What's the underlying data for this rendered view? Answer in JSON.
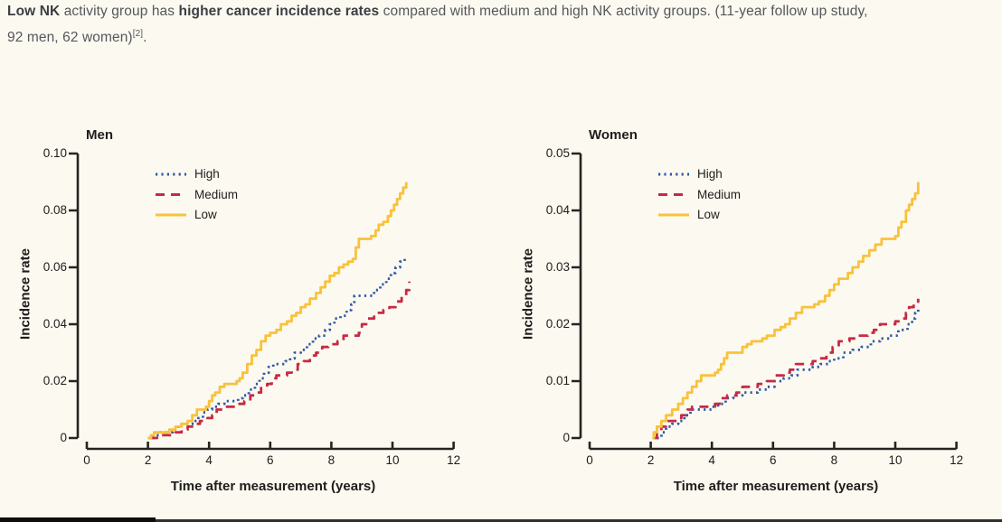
{
  "header": {
    "bold1": "Low NK",
    "text1": " activity group has ",
    "bold2": "higher cancer incidence rates",
    "text2": " compared with medium and high NK activity groups. (11-year follow up study,",
    "line2": "92 men, 62 women)",
    "citation": "[2]",
    "period": "."
  },
  "colors": {
    "high": "#2e59a4",
    "medium": "#c62a45",
    "low": "#f8c23c",
    "axis": "#262422",
    "background": "#fcf9f0"
  },
  "chart_data": [
    {
      "type": "line",
      "title": "Men",
      "xlabel": "Time after measurement (years)",
      "ylabel": "Incidence rate",
      "xlim": [
        0,
        12
      ],
      "ylim": [
        0,
        0.1
      ],
      "xticks": [
        0,
        2,
        4,
        6,
        8,
        10,
        12
      ],
      "yticks": [
        0,
        0.02,
        0.04,
        0.06,
        0.08,
        0.1
      ],
      "ytick_labels": [
        "0",
        "0.02",
        "0.04",
        "0.06",
        "0.08",
        "0.10"
      ],
      "grid": false,
      "legend_position": "upper-left-inside",
      "series": [
        {
          "name": "High",
          "style": "dotted",
          "color": "#2e59a4",
          "points": [
            [
              2,
              0
            ],
            [
              2.15,
              0.001
            ],
            [
              2.4,
              0.002
            ],
            [
              2.8,
              0.003
            ],
            [
              3.0,
              0.004
            ],
            [
              3.1,
              0.005
            ],
            [
              3.5,
              0.006
            ],
            [
              3.65,
              0.007
            ],
            [
              3.8,
              0.009
            ],
            [
              3.95,
              0.01
            ],
            [
              4.1,
              0.011
            ],
            [
              4.3,
              0.012
            ],
            [
              4.5,
              0.013
            ],
            [
              4.95,
              0.014
            ],
            [
              5.1,
              0.015
            ],
            [
              5.3,
              0.017
            ],
            [
              5.5,
              0.019
            ],
            [
              5.65,
              0.021
            ],
            [
              5.8,
              0.023
            ],
            [
              5.95,
              0.025
            ],
            [
              6.1,
              0.026
            ],
            [
              6.5,
              0.027
            ],
            [
              6.65,
              0.028
            ],
            [
              6.8,
              0.03
            ],
            [
              7.0,
              0.031
            ],
            [
              7.2,
              0.033
            ],
            [
              7.4,
              0.035
            ],
            [
              7.6,
              0.036
            ],
            [
              7.8,
              0.038
            ],
            [
              7.95,
              0.04
            ],
            [
              8.1,
              0.042
            ],
            [
              8.3,
              0.043
            ],
            [
              8.5,
              0.045
            ],
            [
              8.65,
              0.047
            ],
            [
              8.75,
              0.05
            ],
            [
              9.2,
              0.05
            ],
            [
              9.4,
              0.052
            ],
            [
              9.6,
              0.054
            ],
            [
              9.8,
              0.056
            ],
            [
              9.95,
              0.058
            ],
            [
              10.1,
              0.06
            ],
            [
              10.25,
              0.062
            ],
            [
              10.4,
              0.063
            ]
          ]
        },
        {
          "name": "Medium",
          "style": "dashed",
          "color": "#c62a45",
          "points": [
            [
              2.05,
              0
            ],
            [
              2.3,
              0.001
            ],
            [
              2.9,
              0.002
            ],
            [
              3.1,
              0.003
            ],
            [
              3.3,
              0.004
            ],
            [
              3.5,
              0.005
            ],
            [
              3.7,
              0.006
            ],
            [
              3.95,
              0.007
            ],
            [
              4.1,
              0.008
            ],
            [
              4.25,
              0.01
            ],
            [
              4.5,
              0.011
            ],
            [
              4.95,
              0.012
            ],
            [
              5.15,
              0.013
            ],
            [
              5.35,
              0.015
            ],
            [
              5.55,
              0.016
            ],
            [
              5.7,
              0.018
            ],
            [
              5.9,
              0.019
            ],
            [
              6.05,
              0.021
            ],
            [
              6.2,
              0.022
            ],
            [
              6.55,
              0.023
            ],
            [
              6.7,
              0.024
            ],
            [
              6.9,
              0.026
            ],
            [
              7.1,
              0.027
            ],
            [
              7.3,
              0.029
            ],
            [
              7.5,
              0.03
            ],
            [
              7.7,
              0.032
            ],
            [
              7.9,
              0.033
            ],
            [
              8.2,
              0.034
            ],
            [
              8.4,
              0.036
            ],
            [
              8.9,
              0.037
            ],
            [
              9.0,
              0.04
            ],
            [
              9.2,
              0.042
            ],
            [
              9.4,
              0.044
            ],
            [
              9.7,
              0.045
            ],
            [
              9.9,
              0.046
            ],
            [
              10.1,
              0.048
            ],
            [
              10.3,
              0.05
            ],
            [
              10.45,
              0.052
            ],
            [
              10.55,
              0.055
            ]
          ]
        },
        {
          "name": "Low",
          "style": "solid",
          "color": "#f8c23c",
          "points": [
            [
              2,
              0
            ],
            [
              2.1,
              0.001
            ],
            [
              2.2,
              0.002
            ],
            [
              2.5,
              0.002
            ],
            [
              2.7,
              0.003
            ],
            [
              2.9,
              0.004
            ],
            [
              3.1,
              0.005
            ],
            [
              3.3,
              0.006
            ],
            [
              3.45,
              0.008
            ],
            [
              3.6,
              0.01
            ],
            [
              3.9,
              0.011
            ],
            [
              4.0,
              0.013
            ],
            [
              4.1,
              0.015
            ],
            [
              4.2,
              0.016
            ],
            [
              4.35,
              0.018
            ],
            [
              4.5,
              0.019
            ],
            [
              4.9,
              0.02
            ],
            [
              5.0,
              0.021
            ],
            [
              5.1,
              0.023
            ],
            [
              5.25,
              0.026
            ],
            [
              5.4,
              0.029
            ],
            [
              5.55,
              0.031
            ],
            [
              5.7,
              0.034
            ],
            [
              5.85,
              0.036
            ],
            [
              6.0,
              0.037
            ],
            [
              6.2,
              0.038
            ],
            [
              6.35,
              0.04
            ],
            [
              6.55,
              0.041
            ],
            [
              6.7,
              0.043
            ],
            [
              6.85,
              0.044
            ],
            [
              7.0,
              0.046
            ],
            [
              7.15,
              0.047
            ],
            [
              7.3,
              0.049
            ],
            [
              7.5,
              0.051
            ],
            [
              7.65,
              0.053
            ],
            [
              7.8,
              0.055
            ],
            [
              7.95,
              0.057
            ],
            [
              8.1,
              0.058
            ],
            [
              8.25,
              0.06
            ],
            [
              8.4,
              0.061
            ],
            [
              8.55,
              0.062
            ],
            [
              8.7,
              0.063
            ],
            [
              8.8,
              0.067
            ],
            [
              8.9,
              0.07
            ],
            [
              9.3,
              0.071
            ],
            [
              9.45,
              0.073
            ],
            [
              9.55,
              0.075
            ],
            [
              9.7,
              0.076
            ],
            [
              9.85,
              0.078
            ],
            [
              9.95,
              0.08
            ],
            [
              10.05,
              0.082
            ],
            [
              10.15,
              0.084
            ],
            [
              10.25,
              0.086
            ],
            [
              10.35,
              0.088
            ],
            [
              10.45,
              0.09
            ]
          ]
        }
      ]
    },
    {
      "type": "line",
      "title": "Women",
      "xlabel": "Time after measurement (years)",
      "ylabel": "Incidence rate",
      "xlim": [
        0,
        12
      ],
      "ylim": [
        0,
        0.05
      ],
      "xticks": [
        0,
        2,
        4,
        6,
        8,
        10,
        12
      ],
      "yticks": [
        0,
        0.01,
        0.02,
        0.03,
        0.04,
        0.05
      ],
      "ytick_labels": [
        "0",
        "0.01",
        "0.02",
        "0.03",
        "0.04",
        "0.05"
      ],
      "grid": false,
      "legend_position": "upper-left-inside",
      "series": [
        {
          "name": "High",
          "style": "dotted",
          "color": "#2e59a4",
          "points": [
            [
              2.2,
              0
            ],
            [
              2.35,
              0.001
            ],
            [
              2.5,
              0.002
            ],
            [
              2.7,
              0.0025
            ],
            [
              2.9,
              0.003
            ],
            [
              3.1,
              0.004
            ],
            [
              3.3,
              0.005
            ],
            [
              4.0,
              0.0055
            ],
            [
              4.2,
              0.006
            ],
            [
              4.45,
              0.007
            ],
            [
              4.7,
              0.0075
            ],
            [
              5.0,
              0.008
            ],
            [
              5.5,
              0.0085
            ],
            [
              5.8,
              0.009
            ],
            [
              6.05,
              0.01
            ],
            [
              6.35,
              0.0105
            ],
            [
              6.6,
              0.011
            ],
            [
              6.8,
              0.012
            ],
            [
              7.3,
              0.0125
            ],
            [
              7.55,
              0.013
            ],
            [
              7.8,
              0.0135
            ],
            [
              8.0,
              0.014
            ],
            [
              8.3,
              0.015
            ],
            [
              8.6,
              0.0155
            ],
            [
              8.9,
              0.016
            ],
            [
              9.2,
              0.017
            ],
            [
              9.5,
              0.0175
            ],
            [
              9.8,
              0.018
            ],
            [
              10.1,
              0.019
            ],
            [
              10.4,
              0.02
            ],
            [
              10.55,
              0.021
            ],
            [
              10.65,
              0.022
            ],
            [
              10.75,
              0.023
            ]
          ]
        },
        {
          "name": "Medium",
          "style": "dashed",
          "color": "#c62a45",
          "points": [
            [
              2.1,
              0
            ],
            [
              2.2,
              0.001
            ],
            [
              2.35,
              0.002
            ],
            [
              2.5,
              0.003
            ],
            [
              2.9,
              0.0035
            ],
            [
              3.0,
              0.004
            ],
            [
              3.2,
              0.005
            ],
            [
              3.35,
              0.0055
            ],
            [
              4.1,
              0.006
            ],
            [
              4.25,
              0.007
            ],
            [
              4.5,
              0.0075
            ],
            [
              4.8,
              0.008
            ],
            [
              5.0,
              0.009
            ],
            [
              5.5,
              0.0095
            ],
            [
              5.8,
              0.01
            ],
            [
              6.05,
              0.011
            ],
            [
              6.35,
              0.0115
            ],
            [
              6.55,
              0.012
            ],
            [
              6.75,
              0.013
            ],
            [
              7.3,
              0.0135
            ],
            [
              7.5,
              0.014
            ],
            [
              7.75,
              0.015
            ],
            [
              7.95,
              0.016
            ],
            [
              8.15,
              0.017
            ],
            [
              8.5,
              0.0175
            ],
            [
              8.7,
              0.018
            ],
            [
              9.1,
              0.0185
            ],
            [
              9.3,
              0.019
            ],
            [
              9.5,
              0.02
            ],
            [
              10.0,
              0.0205
            ],
            [
              10.2,
              0.021
            ],
            [
              10.35,
              0.022
            ],
            [
              10.45,
              0.023
            ],
            [
              10.6,
              0.0235
            ],
            [
              10.75,
              0.0245
            ]
          ]
        },
        {
          "name": "Low",
          "style": "solid",
          "color": "#f8c23c",
          "points": [
            [
              2.05,
              0
            ],
            [
              2.1,
              0.001
            ],
            [
              2.2,
              0.002
            ],
            [
              2.35,
              0.003
            ],
            [
              2.5,
              0.004
            ],
            [
              2.7,
              0.005
            ],
            [
              2.9,
              0.006
            ],
            [
              3.05,
              0.007
            ],
            [
              3.2,
              0.008
            ],
            [
              3.35,
              0.009
            ],
            [
              3.5,
              0.01
            ],
            [
              3.65,
              0.011
            ],
            [
              4.1,
              0.0115
            ],
            [
              4.2,
              0.012
            ],
            [
              4.3,
              0.013
            ],
            [
              4.4,
              0.014
            ],
            [
              4.5,
              0.015
            ],
            [
              5.0,
              0.016
            ],
            [
              5.15,
              0.0165
            ],
            [
              5.3,
              0.017
            ],
            [
              5.65,
              0.0175
            ],
            [
              5.8,
              0.018
            ],
            [
              6.05,
              0.019
            ],
            [
              6.25,
              0.0195
            ],
            [
              6.4,
              0.02
            ],
            [
              6.55,
              0.021
            ],
            [
              6.75,
              0.022
            ],
            [
              6.95,
              0.023
            ],
            [
              7.35,
              0.0235
            ],
            [
              7.5,
              0.024
            ],
            [
              7.7,
              0.025
            ],
            [
              7.85,
              0.026
            ],
            [
              8.0,
              0.027
            ],
            [
              8.15,
              0.028
            ],
            [
              8.45,
              0.029
            ],
            [
              8.6,
              0.03
            ],
            [
              8.8,
              0.031
            ],
            [
              8.95,
              0.032
            ],
            [
              9.15,
              0.033
            ],
            [
              9.35,
              0.034
            ],
            [
              9.55,
              0.035
            ],
            [
              10.0,
              0.0355
            ],
            [
              10.1,
              0.037
            ],
            [
              10.2,
              0.038
            ],
            [
              10.35,
              0.04
            ],
            [
              10.45,
              0.041
            ],
            [
              10.55,
              0.042
            ],
            [
              10.65,
              0.043
            ],
            [
              10.75,
              0.045
            ]
          ]
        }
      ]
    }
  ]
}
